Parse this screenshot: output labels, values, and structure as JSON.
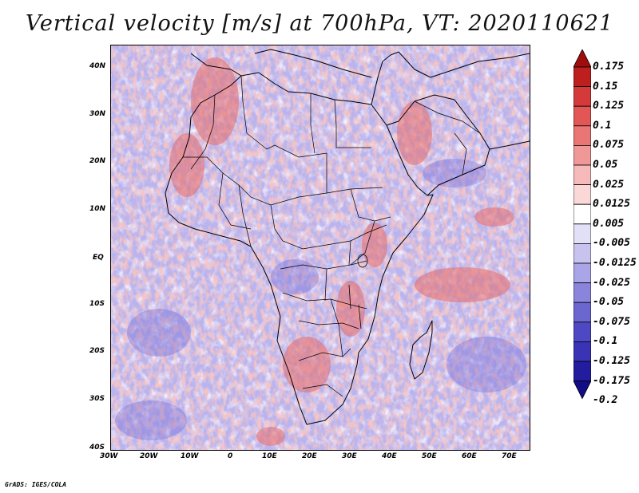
{
  "title": "Vertical velocity [m/s] at 700hPa, VT: 2020110621",
  "footer": "GrADS: IGES/COLA",
  "map": {
    "extent": {
      "lon": [
        -30,
        75
      ],
      "lat": [
        -40,
        45
      ]
    },
    "lon_ticks": [
      "30W",
      "20W",
      "10W",
      "0",
      "10E",
      "20E",
      "30E",
      "40E",
      "50E",
      "60E",
      "70E"
    ],
    "lat_ticks": [
      "40N",
      "30N",
      "20N",
      "10N",
      "EQ",
      "10S",
      "20S",
      "30S",
      "40S"
    ],
    "layers": [
      "coastlines",
      "country boundaries"
    ],
    "field": "vertical velocity at 700hPa"
  },
  "colorbar": {
    "labels": [
      "0.175",
      "0.15",
      "0.125",
      "0.1",
      "0.075",
      "0.05",
      "0.025",
      "0.0125",
      "0.005",
      "-0.005",
      "-0.0125",
      "-0.025",
      "-0.05",
      "-0.075",
      "-0.1",
      "-0.125",
      "-0.175",
      "-0.2"
    ],
    "colors": [
      "#a00d0d",
      "#bd1f1f",
      "#d43a3a",
      "#e25656",
      "#ea7575",
      "#f09898",
      "#f6baba",
      "#fad8d8",
      "#ffffff",
      "#e2e0f6",
      "#c7c3ef",
      "#aaa5e6",
      "#8a84dc",
      "#6c66d0",
      "#4f48c4",
      "#3a33b5",
      "#231c9e",
      "#120c86"
    ]
  }
}
